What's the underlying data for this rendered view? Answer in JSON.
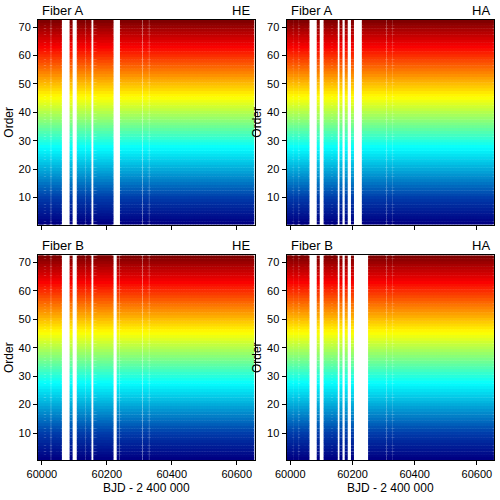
{
  "chart_data": [
    {
      "type": "scatter",
      "title": "Fiber A",
      "subtitle": "HE",
      "y_label": "Order",
      "color": "Jet",
      "marker": "square",
      "grid": false,
      "tick_labels": "y",
      "xlim": [
        59988,
        60655
      ],
      "ylim": [
        0.5,
        72.5
      ],
      "xticks": [
        60000,
        60200,
        60400,
        60600
      ],
      "yticks": [
        10,
        20,
        30,
        40,
        50,
        60,
        70
      ],
      "x": [
        59990,
        59993,
        59996,
        59999,
        60002,
        60005,
        60014,
        60017,
        60020,
        60023,
        60033,
        60036,
        60039,
        60042,
        60045,
        60051,
        60054,
        60057,
        60090,
        60112,
        60115,
        60118,
        60124,
        60127,
        60130,
        60139,
        60142,
        60145,
        60148,
        60163,
        60171,
        60174,
        60177,
        60180,
        60183,
        60186,
        60189,
        60192,
        60195,
        60198,
        60201,
        60204,
        60207,
        60210,
        60213,
        60216,
        60245,
        60250,
        60255,
        60260,
        60265,
        60270,
        60275,
        60280,
        60285,
        60290,
        60295,
        60300,
        60305,
        60315,
        60320,
        60325,
        60335,
        60340,
        60345,
        60350,
        60355,
        60360,
        60365,
        60370,
        60375,
        60380,
        60385,
        60390,
        60395,
        60400,
        60405,
        60410,
        60415,
        60420,
        60425,
        60430,
        60435,
        60440,
        60445,
        60450,
        60455,
        60460,
        60465,
        60470,
        60475,
        60480,
        60485,
        60490,
        60495,
        60500,
        60505,
        60510,
        60515,
        60520,
        60525,
        60530,
        60535,
        60540,
        60545,
        60550,
        60555,
        60560,
        60565,
        60570,
        60575,
        60580,
        60585,
        60590,
        60595,
        60600,
        60605,
        60610,
        60615,
        60620,
        60625,
        60630,
        60635,
        60640,
        60645,
        60650
      ],
      "y_values": [
        1,
        2,
        3,
        4,
        5,
        6,
        7,
        8,
        9,
        10,
        11,
        12,
        13,
        14,
        15,
        16,
        17,
        18,
        19,
        20,
        21,
        22,
        23,
        24,
        25,
        26,
        27,
        28,
        29,
        30,
        31,
        32,
        33,
        34,
        35,
        36,
        37,
        38,
        39,
        40,
        41,
        42,
        43,
        44,
        45,
        46,
        47,
        48,
        49,
        50,
        51,
        52,
        53,
        54,
        55,
        56,
        57,
        58,
        59,
        60,
        61,
        62,
        63,
        64,
        65,
        66,
        67,
        68,
        69,
        70,
        71,
        72
      ]
    },
    {
      "type": "scatter",
      "title": "Fiber A",
      "subtitle": "HA",
      "y_label": "Order",
      "color": "Jet",
      "marker": "square",
      "grid": false,
      "tick_labels": "y",
      "xlim": [
        59988,
        60655
      ],
      "ylim": [
        0.5,
        72.5
      ],
      "xticks": [
        60000,
        60200,
        60400,
        60600
      ],
      "yticks": [
        10,
        20,
        30,
        40,
        50,
        60,
        70
      ],
      "x": [
        59990,
        59993,
        59996,
        59999,
        60002,
        60005,
        60014,
        60017,
        60020,
        60023,
        60033,
        60036,
        60039,
        60042,
        60045,
        60051,
        60054,
        60057,
        60090,
        60112,
        60115,
        60118,
        60124,
        60127,
        60130,
        60139,
        60142,
        60145,
        60148,
        60163,
        60180,
        60200,
        60235,
        60240,
        60245,
        60250,
        60255,
        60260,
        60265,
        60270,
        60275,
        60280,
        60285,
        60290,
        60295,
        60300,
        60305,
        60315,
        60320,
        60325,
        60335,
        60340,
        60345,
        60350,
        60355,
        60360,
        60365,
        60370,
        60375,
        60380,
        60385,
        60390,
        60395,
        60400,
        60405,
        60410,
        60415,
        60420,
        60425,
        60430,
        60435,
        60440,
        60445,
        60450,
        60455,
        60460,
        60465,
        60470,
        60475,
        60480,
        60485,
        60490,
        60495,
        60500,
        60505,
        60510,
        60515,
        60520,
        60525,
        60530,
        60535,
        60540,
        60545,
        60550,
        60555,
        60560,
        60565,
        60570,
        60575,
        60580,
        60585,
        60590,
        60595,
        60600,
        60605,
        60610,
        60615,
        60620,
        60625,
        60630,
        60635,
        60640,
        60645,
        60650
      ],
      "y_values": [
        1,
        2,
        3,
        4,
        5,
        6,
        7,
        8,
        9,
        10,
        11,
        12,
        13,
        14,
        15,
        16,
        17,
        18,
        19,
        20,
        21,
        22,
        23,
        24,
        25,
        26,
        27,
        28,
        29,
        30,
        31,
        32,
        33,
        34,
        35,
        36,
        37,
        38,
        39,
        40,
        41,
        42,
        43,
        44,
        45,
        46,
        47,
        48,
        49,
        50,
        51,
        52,
        53,
        54,
        55,
        56,
        57,
        58,
        59,
        60,
        61,
        62,
        63,
        64,
        65,
        66,
        67,
        68,
        69,
        70,
        71,
        72
      ]
    },
    {
      "type": "scatter",
      "title": "Fiber B",
      "subtitle": "HE",
      "x_label": "BJD - 2 400 000",
      "y_label": "Order",
      "color": "Jet",
      "marker": "square",
      "grid": false,
      "xlim": [
        59988,
        60655
      ],
      "ylim": [
        0.5,
        72.5
      ],
      "xticks": [
        60000,
        60200,
        60400,
        60600
      ],
      "yticks": [
        10,
        20,
        30,
        40,
        50,
        60,
        70
      ],
      "x": [
        59990,
        59993,
        59996,
        59999,
        60002,
        60005,
        60014,
        60017,
        60020,
        60023,
        60033,
        60036,
        60039,
        60042,
        60045,
        60051,
        60054,
        60057,
        60090,
        60112,
        60115,
        60118,
        60124,
        60127,
        60130,
        60139,
        60142,
        60145,
        60148,
        60163,
        60171,
        60174,
        60177,
        60180,
        60183,
        60186,
        60189,
        60192,
        60195,
        60198,
        60201,
        60204,
        60207,
        60210,
        60213,
        60216,
        60235,
        60245,
        60250,
        60255,
        60260,
        60265,
        60270,
        60275,
        60280,
        60285,
        60290,
        60295,
        60300,
        60305,
        60315,
        60320,
        60325,
        60335,
        60340,
        60345,
        60350,
        60355,
        60360,
        60365,
        60370,
        60375,
        60380,
        60385,
        60390,
        60395,
        60400,
        60405,
        60410,
        60415,
        60420,
        60425,
        60430,
        60435,
        60440,
        60445,
        60450,
        60455,
        60460,
        60465,
        60470,
        60475,
        60480,
        60485,
        60490,
        60495,
        60500,
        60505,
        60510,
        60515,
        60520,
        60525,
        60530,
        60535,
        60540,
        60545,
        60550,
        60555,
        60560,
        60565,
        60570,
        60575,
        60580,
        60585,
        60590,
        60595,
        60600,
        60605,
        60610,
        60615,
        60620,
        60625,
        60630,
        60635,
        60640,
        60645,
        60650
      ],
      "y_values": [
        1,
        2,
        3,
        4,
        5,
        6,
        7,
        8,
        9,
        10,
        11,
        12,
        13,
        14,
        15,
        16,
        17,
        18,
        19,
        20,
        21,
        22,
        23,
        24,
        25,
        26,
        27,
        28,
        29,
        30,
        31,
        32,
        33,
        34,
        35,
        36,
        37,
        38,
        39,
        40,
        41,
        42,
        43,
        44,
        45,
        46,
        47,
        48,
        49,
        50,
        51,
        52,
        53,
        54,
        55,
        56,
        57,
        58,
        59,
        60,
        61,
        62,
        63,
        64,
        65,
        66,
        67,
        68,
        69,
        70,
        71,
        72
      ]
    },
    {
      "type": "scatter",
      "title": "Fiber B",
      "subtitle": "HA",
      "x_label": "BJD - 2 400 000",
      "y_label": "Order",
      "color": "Jet",
      "marker": "square",
      "grid": false,
      "xlim": [
        59988,
        60655
      ],
      "ylim": [
        0.5,
        72.5
      ],
      "xticks": [
        60000,
        60200,
        60400,
        60600
      ],
      "yticks": [
        10,
        20,
        30,
        40,
        50,
        60,
        70
      ],
      "x": [
        59990,
        59993,
        59996,
        59999,
        60002,
        60005,
        60014,
        60017,
        60020,
        60023,
        60033,
        60036,
        60039,
        60042,
        60045,
        60051,
        60054,
        60057,
        60090,
        60112,
        60115,
        60118,
        60124,
        60127,
        60130,
        60139,
        60142,
        60145,
        60148,
        60163,
        60180,
        60200,
        60255,
        60260,
        60265,
        60270,
        60275,
        60280,
        60285,
        60290,
        60295,
        60300,
        60305,
        60315,
        60320,
        60325,
        60335,
        60340,
        60345,
        60350,
        60355,
        60360,
        60365,
        60370,
        60375,
        60380,
        60385,
        60390,
        60395,
        60400,
        60405,
        60410,
        60415,
        60420,
        60425,
        60430,
        60435,
        60440,
        60445,
        60450,
        60455,
        60460,
        60465,
        60470,
        60475,
        60480,
        60485,
        60490,
        60495,
        60500,
        60505,
        60510,
        60515,
        60520,
        60525,
        60530,
        60535,
        60540,
        60545,
        60550,
        60555,
        60560,
        60565,
        60570,
        60575,
        60580,
        60585,
        60590,
        60595,
        60600,
        60605,
        60610,
        60615,
        60620,
        60625,
        60630,
        60635,
        60640,
        60645,
        60650
      ],
      "y_values": [
        1,
        2,
        3,
        4,
        5,
        6,
        7,
        8,
        9,
        10,
        11,
        12,
        13,
        14,
        15,
        16,
        17,
        18,
        19,
        20,
        21,
        22,
        23,
        24,
        25,
        26,
        27,
        28,
        29,
        30,
        31,
        32,
        33,
        34,
        35,
        36,
        37,
        38,
        39,
        40,
        41,
        42,
        43,
        44,
        45,
        46,
        47,
        48,
        49,
        50,
        51,
        52,
        53,
        54,
        55,
        56,
        57,
        58,
        59,
        60,
        61,
        62,
        63,
        64,
        65,
        66,
        67,
        68,
        69,
        70,
        71,
        72
      ]
    }
  ]
}
